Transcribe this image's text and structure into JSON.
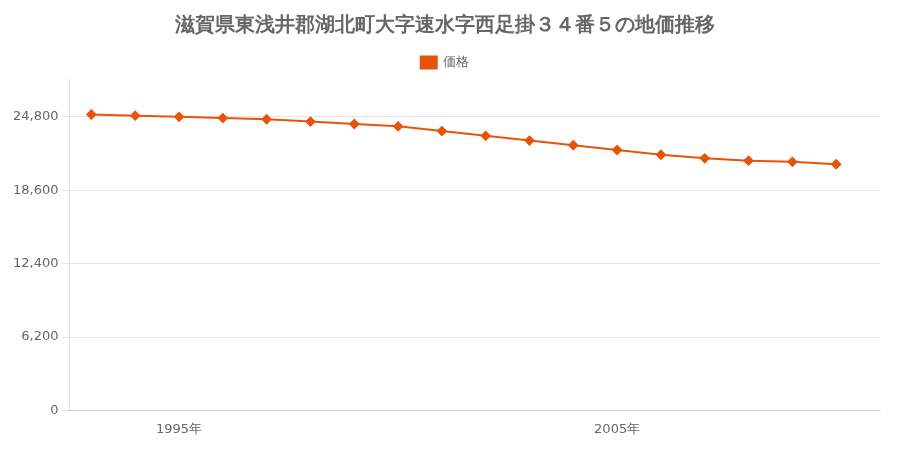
{
  "chart_data": {
    "type": "line",
    "title": "滋賀県東浅井郡湖北町大字速水字西足掛３４番５の地価推移",
    "x": [
      1993,
      1994,
      1995,
      1996,
      1997,
      1998,
      1999,
      2000,
      2001,
      2002,
      2003,
      2004,
      2005,
      2006,
      2007,
      2008,
      2009,
      2010
    ],
    "series": [
      {
        "name": "価格",
        "color": "#e8530a",
        "marker": "diamond",
        "values": [
          25000,
          24900,
          24800,
          24700,
          24600,
          24400,
          24200,
          24000,
          23600,
          23200,
          22800,
          22400,
          22000,
          21600,
          21300,
          21100,
          21000,
          20800
        ]
      }
    ],
    "xlim": [
      1992.5,
      2011
    ],
    "xticks": [
      {
        "value": 1995,
        "label": "1995年"
      },
      {
        "value": 2005,
        "label": "2005年"
      }
    ],
    "ylim": [
      0,
      28000
    ],
    "yticks": [
      0,
      {
        "value": 6200,
        "label": "6,200"
      },
      {
        "value": 12400,
        "label": "12,400"
      },
      {
        "value": 18600,
        "label": "18,600"
      },
      {
        "value": 24800,
        "label": "24,800"
      }
    ],
    "grid": "y",
    "legend": "top"
  }
}
